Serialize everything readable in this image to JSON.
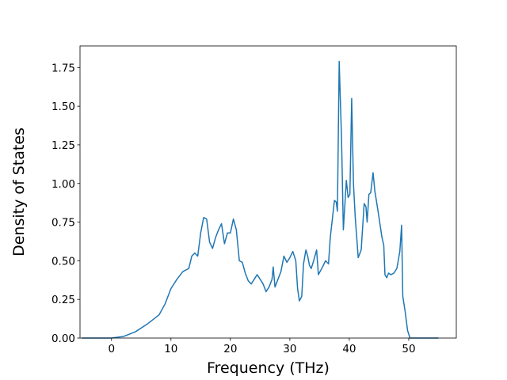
{
  "chart_data": {
    "type": "line",
    "xlabel": "Frequency (THz)",
    "ylabel": "Density of States",
    "x": [
      -5,
      0,
      2,
      4,
      6,
      7,
      8,
      9,
      10,
      11,
      12,
      13,
      13.5,
      14,
      14.5,
      15,
      15.5,
      16,
      16.5,
      17,
      17.5,
      18,
      18.5,
      19,
      19.5,
      20,
      20.5,
      21,
      21.5,
      22,
      22.5,
      23,
      23.5,
      24,
      24.5,
      25,
      25.5,
      26,
      26.5,
      27,
      27.2,
      27.5,
      28,
      28.5,
      29,
      29.5,
      30,
      30.5,
      31,
      31.3,
      31.6,
      32,
      32.3,
      32.7,
      33,
      33.3,
      33.6,
      34,
      34.5,
      34.8,
      35.5,
      36,
      36.5,
      36.8,
      37.5,
      37.8,
      38,
      38.3,
      38.7,
      39,
      39.5,
      39.8,
      40.1,
      40.4,
      40.7,
      41,
      41.5,
      42,
      42.5,
      42.8,
      43,
      43.3,
      43.6,
      44,
      44.3,
      44.8,
      45.5,
      45.8,
      46,
      46.3,
      46.6,
      47,
      47.5,
      48,
      48.5,
      48.8,
      49,
      49.4,
      49.8,
      50.2,
      55
    ],
    "series": [
      {
        "color": "#1f77b4",
        "values": [
          0,
          0,
          0.01,
          0.04,
          0.09,
          0.12,
          0.15,
          0.22,
          0.32,
          0.38,
          0.43,
          0.45,
          0.53,
          0.55,
          0.53,
          0.68,
          0.78,
          0.77,
          0.62,
          0.58,
          0.65,
          0.7,
          0.74,
          0.61,
          0.68,
          0.68,
          0.77,
          0.7,
          0.5,
          0.49,
          0.42,
          0.37,
          0.35,
          0.38,
          0.41,
          0.38,
          0.35,
          0.3,
          0.33,
          0.38,
          0.46,
          0.33,
          0.38,
          0.43,
          0.53,
          0.49,
          0.52,
          0.56,
          0.5,
          0.32,
          0.24,
          0.27,
          0.48,
          0.57,
          0.53,
          0.47,
          0.45,
          0.5,
          0.57,
          0.41,
          0.46,
          0.5,
          0.48,
          0.65,
          0.89,
          0.88,
          0.82,
          1.79,
          1.28,
          0.7,
          1.02,
          0.91,
          0.93,
          1.55,
          1.0,
          0.78,
          0.52,
          0.57,
          0.87,
          0.85,
          0.75,
          0.93,
          0.94,
          1.07,
          0.95,
          0.83,
          0.65,
          0.6,
          0.41,
          0.39,
          0.42,
          0.41,
          0.42,
          0.45,
          0.56,
          0.73,
          0.27,
          0.17,
          0.05,
          0,
          0
        ]
      }
    ],
    "xlim": [
      -5.3,
      58
    ],
    "ylim": [
      0,
      1.89
    ],
    "xticks": [
      0,
      10,
      20,
      30,
      40,
      50
    ],
    "yticks": [
      {
        "value": 0,
        "label": "0.00"
      },
      {
        "value": 0.25,
        "label": "0.25"
      },
      {
        "value": 0.5,
        "label": "0.50"
      },
      {
        "value": 0.75,
        "label": "0.75"
      },
      {
        "value": 1,
        "label": "1.00"
      },
      {
        "value": 1.25,
        "label": "1.25"
      },
      {
        "value": 1.5,
        "label": "1.50"
      },
      {
        "value": 1.75,
        "label": "1.75"
      }
    ]
  }
}
